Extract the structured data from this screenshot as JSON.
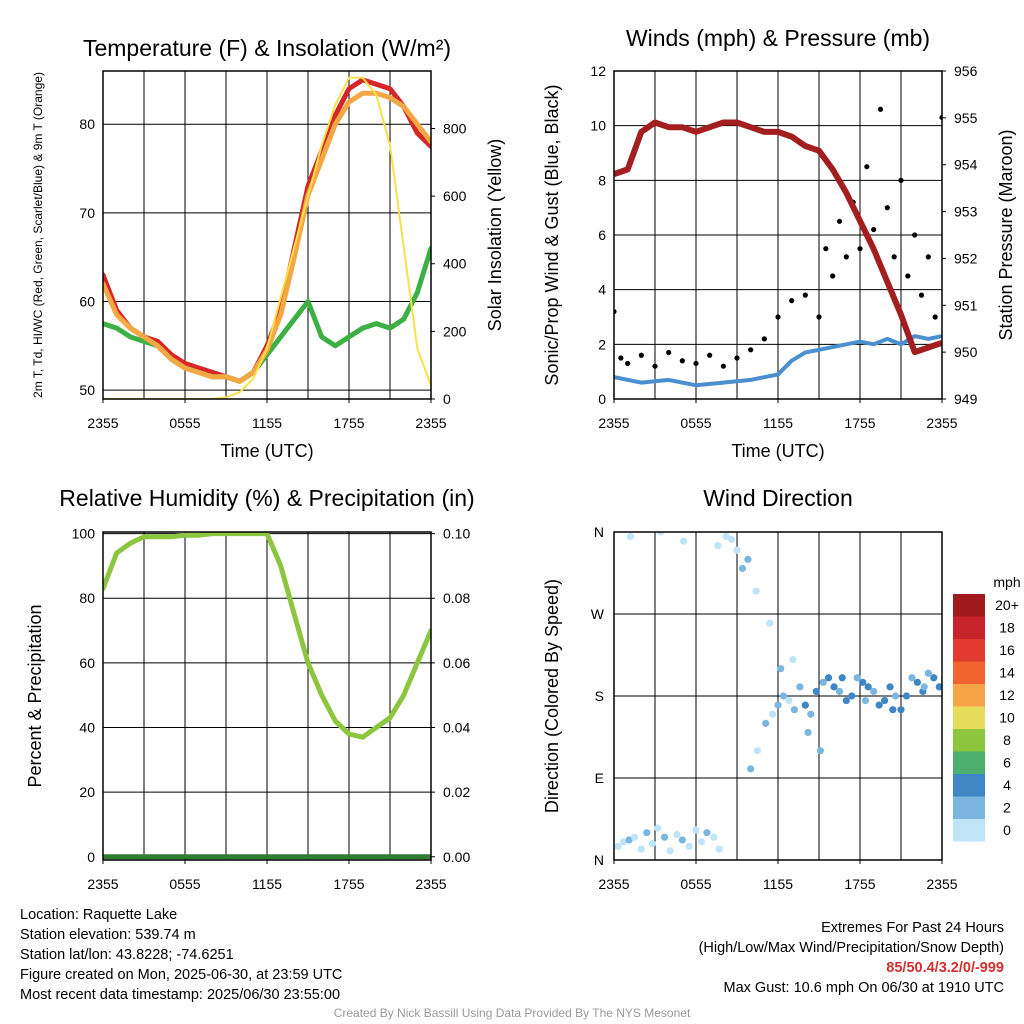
{
  "chart_data": [
    {
      "type": "line",
      "title": "Temperature (F) & Insolation (W/m²)",
      "xlabel": "Time (UTC)",
      "ylabel_left": "2m T, Td, HI/WC (Red, Green, Scarlet/Blue) & 9m T (Orange)",
      "ylabel_right": "Solar Insolation (Yellow)",
      "x_ticks": [
        "2355",
        "0555",
        "1155",
        "1755",
        "2355"
      ],
      "x_range_hours": [
        0,
        24
      ],
      "ylim_left": [
        49,
        86
      ],
      "yticks_left": [
        50,
        60,
        70,
        80
      ],
      "ylim_right": [
        0,
        970
      ],
      "yticks_right": [
        0,
        200,
        400,
        600,
        800
      ],
      "series": [
        {
          "name": "Temperature",
          "axis": "left",
          "color": "#d62728",
          "x": [
            0,
            1,
            2,
            3,
            4,
            5,
            6,
            7,
            8,
            9,
            10,
            11,
            12,
            13,
            14,
            15,
            16,
            17,
            18,
            19,
            20,
            21,
            22,
            23,
            24
          ],
          "y": [
            63,
            59,
            57,
            56,
            55.5,
            54,
            53,
            52.5,
            52,
            51.5,
            51,
            52,
            55,
            59,
            66,
            73,
            77,
            81,
            84,
            85,
            84.5,
            84,
            82,
            79,
            77.5
          ]
        },
        {
          "name": "Dew Point",
          "axis": "left",
          "color": "#3cb043",
          "x": [
            0,
            1,
            2,
            3,
            4,
            5,
            6,
            7,
            8,
            9,
            10,
            11,
            12,
            13,
            14,
            15,
            16,
            17,
            18,
            19,
            20,
            21,
            22,
            23,
            24
          ],
          "y": [
            57.5,
            57,
            56,
            55.5,
            55,
            53.5,
            52.5,
            52,
            51.5,
            51.5,
            51,
            52,
            54,
            56,
            58,
            60,
            56,
            55,
            56,
            57,
            57.5,
            57,
            58,
            61,
            66
          ]
        },
        {
          "name": "9m Temperature",
          "axis": "left",
          "color": "#f4a742",
          "x": [
            0,
            1,
            2,
            3,
            4,
            5,
            6,
            7,
            8,
            9,
            10,
            11,
            12,
            13,
            14,
            15,
            16,
            17,
            18,
            19,
            20,
            21,
            22,
            23,
            24
          ],
          "y": [
            62,
            58.5,
            57,
            56,
            55,
            53.5,
            52.5,
            52,
            51.5,
            51.5,
            51,
            52,
            54.5,
            58.5,
            65,
            72,
            76,
            80,
            82.5,
            83.5,
            83.5,
            83,
            82,
            80,
            78
          ]
        },
        {
          "name": "Solar Insolation",
          "axis": "right",
          "color": "#f7e14a",
          "x": [
            0,
            1,
            2,
            3,
            4,
            5,
            6,
            7,
            8,
            9,
            10,
            11,
            12,
            13,
            14,
            15,
            16,
            17,
            18,
            19,
            20,
            21,
            22,
            23,
            24
          ],
          "y": [
            0,
            0,
            0,
            0,
            0,
            0,
            0,
            0,
            0,
            5,
            20,
            60,
            150,
            300,
            450,
            600,
            750,
            870,
            950,
            950,
            900,
            750,
            450,
            150,
            40
          ]
        }
      ]
    },
    {
      "type": "scatter",
      "title": "Winds (mph) & Pressure (mb)",
      "xlabel": "Time (UTC)",
      "ylabel_left": "Sonic/Prop Wind & Gust (Blue, Black)",
      "ylabel_right": "Station Pressure (Maroon)",
      "x_ticks": [
        "2355",
        "0555",
        "1155",
        "1755",
        "2355"
      ],
      "x_range_hours": [
        0,
        24
      ],
      "ylim_left": [
        0,
        12
      ],
      "yticks_left": [
        0,
        2,
        4,
        6,
        8,
        10,
        12
      ],
      "ylim_right": [
        949,
        956
      ],
      "yticks_right": [
        949,
        950,
        951,
        952,
        953,
        954,
        955,
        956
      ],
      "series": [
        {
          "name": "Wind",
          "axis": "left",
          "color": "#4a90d0",
          "x": [
            0,
            2,
            4,
            6,
            8,
            10,
            12,
            13,
            14,
            15,
            16,
            17,
            18,
            19,
            20,
            21,
            22,
            23,
            24
          ],
          "y": [
            0.8,
            0.6,
            0.7,
            0.5,
            0.6,
            0.7,
            0.9,
            1.4,
            1.7,
            1.8,
            1.9,
            2.0,
            2.1,
            2.0,
            2.2,
            2.0,
            2.3,
            2.2,
            2.3
          ]
        },
        {
          "name": "Gust",
          "axis": "left",
          "color": "#000000",
          "x": [
            0,
            0.5,
            1,
            2,
            3,
            4,
            5,
            6,
            7,
            8,
            9,
            10,
            11,
            12,
            13,
            14,
            15,
            15.5,
            16,
            16.5,
            17,
            17.5,
            18,
            18.5,
            19,
            19.5,
            20,
            20.5,
            21,
            21.5,
            22,
            22.5,
            23,
            23.5,
            24
          ],
          "y": [
            3.2,
            1.5,
            1.3,
            1.6,
            1.2,
            1.7,
            1.4,
            1.3,
            1.6,
            1.2,
            1.5,
            1.8,
            2.2,
            3.0,
            3.6,
            3.8,
            3.0,
            5.5,
            4.5,
            6.5,
            5.2,
            7.2,
            5.5,
            8.5,
            6.2,
            10.6,
            7.0,
            5.2,
            8.0,
            4.5,
            6.0,
            3.8,
            5.2,
            3.0,
            10.3
          ]
        },
        {
          "name": "Station Pressure",
          "axis": "right",
          "color": "#a31f1f",
          "x": [
            0,
            1,
            2,
            3,
            4,
            5,
            6,
            7,
            8,
            9,
            10,
            11,
            12,
            13,
            14,
            15,
            16,
            17,
            18,
            19,
            20,
            21,
            22,
            23,
            24
          ],
          "y": [
            953.8,
            953.9,
            954.7,
            954.9,
            954.8,
            954.8,
            954.7,
            954.8,
            954.9,
            954.9,
            954.8,
            954.7,
            954.7,
            954.6,
            954.4,
            954.3,
            953.9,
            953.4,
            952.8,
            952.2,
            951.5,
            950.8,
            950.0,
            950.1,
            950.2
          ]
        }
      ]
    },
    {
      "type": "line",
      "title": "Relative Humidity (%) & Precipitation (in)",
      "xlabel": "",
      "ylabel_left": "Percent & Precipitation",
      "x_ticks": [
        "2355",
        "0555",
        "1155",
        "1755",
        "2355"
      ],
      "x_range_hours": [
        0,
        24
      ],
      "ylim_left": [
        -1,
        100.5
      ],
      "yticks_left": [
        0,
        20,
        40,
        60,
        80,
        100
      ],
      "ylim_right": [
        -0.001,
        0.1005
      ],
      "yticks_right": [
        "0.00",
        "0.02",
        "0.04",
        "0.06",
        "0.08",
        "0.10"
      ],
      "series": [
        {
          "name": "Relative Humidity",
          "axis": "left",
          "color": "#8cc63f",
          "x": [
            0,
            1,
            2,
            3,
            4,
            5,
            6,
            7,
            8,
            9,
            10,
            11,
            12,
            13,
            14,
            15,
            16,
            17,
            18,
            19,
            20,
            21,
            22,
            23,
            24
          ],
          "y": [
            83,
            94,
            97,
            99,
            99,
            99,
            99.5,
            99.5,
            100,
            100,
            100,
            100,
            100,
            90,
            75,
            60,
            50,
            42,
            38,
            37,
            40,
            43,
            50,
            60,
            70
          ]
        },
        {
          "name": "Precipitation",
          "axis": "left",
          "color": "#2e7d32",
          "x": [
            0,
            24
          ],
          "y": [
            0,
            0
          ]
        }
      ]
    },
    {
      "type": "scatter",
      "title": "Wind Direction",
      "ylabel_left": "Direction (Colored By Speed)",
      "x_ticks": [
        "2355",
        "0555",
        "1155",
        "1755",
        "2355"
      ],
      "x_range_hours": [
        0,
        24
      ],
      "ylim_left": [
        0,
        360
      ],
      "y_tick_labels": [
        "N",
        "E",
        "S",
        "W",
        "N"
      ],
      "colorbar": {
        "unit": "mph",
        "labels": [
          "20+",
          "18",
          "16",
          "14",
          "12",
          "10",
          "8",
          "6",
          "4",
          "2",
          "0"
        ],
        "colors": [
          "#a11a1d",
          "#c7232a",
          "#e03b2e",
          "#f2642f",
          "#f7a447",
          "#e6dc5a",
          "#8cc63f",
          "#4caf6e",
          "#3e86c4",
          "#7ab6e0",
          "#bfe3f7"
        ]
      },
      "series": [
        {
          "name": "Direction",
          "x": [
            0.3,
            0.7,
            1.1,
            1.5,
            2.0,
            2.4,
            2.8,
            3.2,
            3.7,
            4.1,
            4.6,
            5.0,
            5.5,
            6.0,
            6.4,
            6.8,
            7.3,
            7.7,
            8.2,
            8.6,
            9.0,
            9.4,
            10.0,
            10.5,
            11.1,
            11.6,
            12.0,
            12.4,
            12.8,
            13.2,
            13.6,
            14.0,
            14.4,
            14.8,
            15.3,
            15.7,
            16.1,
            16.5,
            17.0,
            17.4,
            17.8,
            18.2,
            18.6,
            19.0,
            19.4,
            19.8,
            20.2,
            20.6,
            21.0,
            21.4,
            21.8,
            22.2,
            22.6,
            23.0,
            23.4,
            23.8,
            1.2,
            3.4,
            5.1,
            7.6,
            9.8,
            10.4,
            11.4,
            12.2,
            13.1,
            14.2,
            15.1,
            16.7,
            18.4,
            20.4,
            22.7
          ],
          "y": [
            15,
            20,
            22,
            25,
            12,
            30,
            18,
            35,
            25,
            10,
            28,
            22,
            15,
            33,
            20,
            30,
            25,
            12,
            355,
            352,
            340,
            320,
            100,
            120,
            150,
            160,
            170,
            180,
            175,
            165,
            190,
            170,
            160,
            185,
            195,
            200,
            190,
            185,
            175,
            180,
            200,
            195,
            190,
            185,
            170,
            175,
            190,
            180,
            165,
            180,
            200,
            195,
            185,
            205,
            200,
            190,
            355,
            360,
            350,
            345,
            330,
            295,
            260,
            210,
            220,
            140,
            120,
            200,
            175,
            165,
            190
          ],
          "colors": [
            "#bfe3f7",
            "#bfe3f7",
            "#7ab6e0",
            "#bfe3f7",
            "#bfe3f7",
            "#7ab6e0",
            "#bfe3f7",
            "#bfe3f7",
            "#7ab6e0",
            "#bfe3f7",
            "#bfe3f7",
            "#7ab6e0",
            "#bfe3f7",
            "#bfe3f7",
            "#bfe3f7",
            "#7ab6e0",
            "#bfe3f7",
            "#bfe3f7",
            "#bfe3f7",
            "#bfe3f7",
            "#bfe3f7",
            "#7ab6e0",
            "#7ab6e0",
            "#bfe3f7",
            "#7ab6e0",
            "#bfe3f7",
            "#7ab6e0",
            "#7ab6e0",
            "#bfe3f7",
            "#7ab6e0",
            "#7ab6e0",
            "#3e86c4",
            "#7ab6e0",
            "#3e86c4",
            "#7ab6e0",
            "#3e86c4",
            "#3e86c4",
            "#7ab6e0",
            "#3e86c4",
            "#3e86c4",
            "#7ab6e0",
            "#3e86c4",
            "#3e86c4",
            "#7ab6e0",
            "#3e86c4",
            "#3e86c4",
            "#3e86c4",
            "#7ab6e0",
            "#3e86c4",
            "#3e86c4",
            "#7ab6e0",
            "#3e86c4",
            "#3e86c4",
            "#7ab6e0",
            "#3e86c4",
            "#3e86c4",
            "#bfe3f7",
            "#bfe3f7",
            "#bfe3f7",
            "#bfe3f7",
            "#7ab6e0",
            "#bfe3f7",
            "#bfe3f7",
            "#7ab6e0",
            "#bfe3f7",
            "#7ab6e0",
            "#7ab6e0",
            "#3e86c4",
            "#7ab6e0",
            "#3e86c4",
            "#7ab6e0"
          ]
        }
      ]
    }
  ],
  "info": {
    "location": "Location: Raquette Lake",
    "elevation": "Station elevation: 539.74 m",
    "latlon": "Station lat/lon: 43.8228; -74.6251",
    "created": "Figure created on Mon, 2025-06-30, at 23:59 UTC",
    "recent": "Most recent data timestamp: 2025/06/30 23:55:00"
  },
  "extremes": {
    "title": "Extremes For Past 24 Hours",
    "subtitle": "(High/Low/Max Wind/Precipitation/Snow Depth)",
    "values": "85/50.4/3.2/0/-999",
    "max_gust": "Max Gust: 10.6 mph On 06/30 at 1910 UTC"
  },
  "credit": "Created By Nick Bassill Using Data Provided By The NYS Mesonet"
}
